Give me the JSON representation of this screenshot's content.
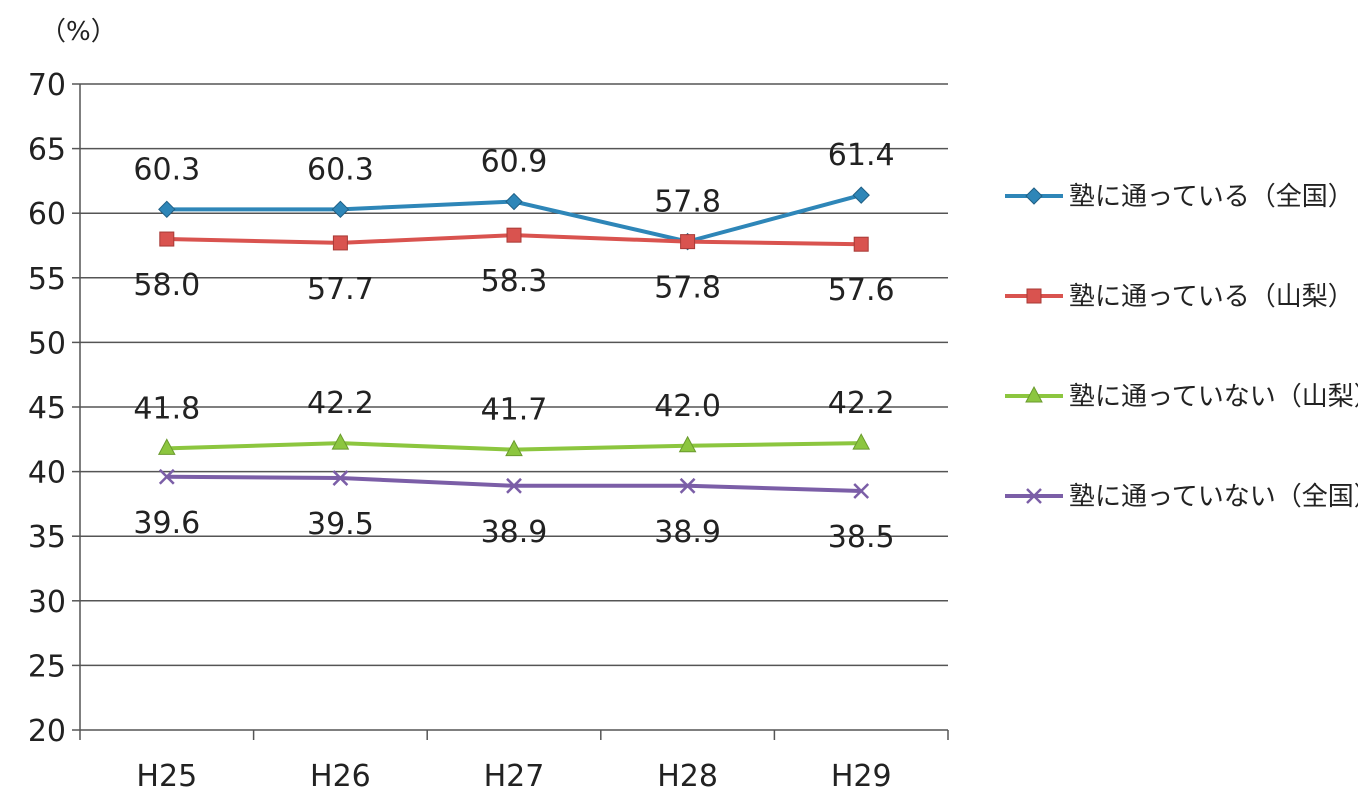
{
  "chart_data": {
    "type": "line",
    "y_unit_label": "（%）",
    "categories": [
      "H25",
      "H26",
      "H27",
      "H28",
      "H29"
    ],
    "ylim": [
      20,
      70
    ],
    "ytick_step": 5,
    "y_ticks": [
      "20",
      "25",
      "30",
      "35",
      "40",
      "45",
      "50",
      "55",
      "60",
      "65",
      "70"
    ],
    "grid": true,
    "legend_position": "right",
    "series": [
      {
        "name": "塾に通っている（全国）",
        "color": "#2e86b8",
        "marker": "diamond",
        "values": [
          60.3,
          60.3,
          60.9,
          57.8,
          61.4
        ],
        "labels": [
          "60.3",
          "60.3",
          "60.9",
          "57.8",
          "61.4"
        ],
        "label_side": "above"
      },
      {
        "name": "塾に通っている（山梨）",
        "color": "#d9534f",
        "marker": "square",
        "values": [
          58.0,
          57.7,
          58.3,
          57.8,
          57.6
        ],
        "labels": [
          "58.0",
          "57.7",
          "58.3",
          "57.8",
          "57.6"
        ],
        "label_side": "below"
      },
      {
        "name": "塾に通っていない（山梨）",
        "color": "#8cc63f",
        "marker": "triangle",
        "values": [
          41.8,
          42.2,
          41.7,
          42.0,
          42.2
        ],
        "labels": [
          "41.8",
          "42.2",
          "41.7",
          "42.0",
          "42.2"
        ],
        "label_side": "above"
      },
      {
        "name": "塾に通っていない（全国）",
        "color": "#7b5ea7",
        "marker": "x",
        "values": [
          39.6,
          39.5,
          38.9,
          38.9,
          38.5
        ],
        "labels": [
          "39.6",
          "39.5",
          "38.9",
          "38.9",
          "38.5"
        ],
        "label_side": "below"
      }
    ]
  }
}
